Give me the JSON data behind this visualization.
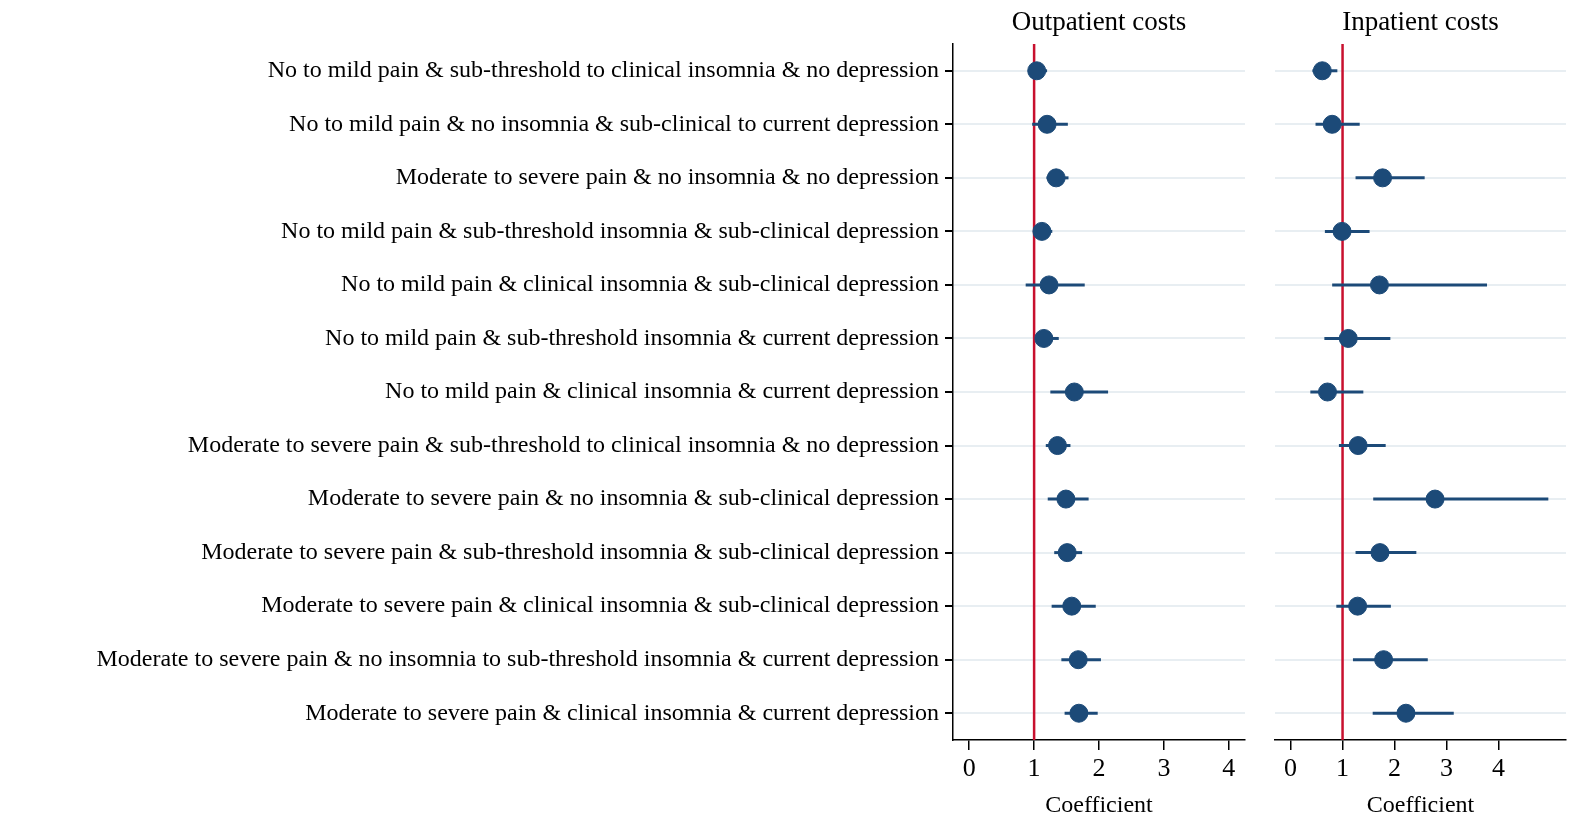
{
  "chart_data": [
    {
      "type": "scatter",
      "orientation": "horizontal",
      "title": "Outpatient costs",
      "xlabel": "Coefficient",
      "categories": [
        "No to mild pain & sub-threshold to clinical insomnia & no depression",
        "No to mild pain & no insomnia & sub-clinical to current depression",
        "Moderate to severe pain & no insomnia & no depression",
        "No to mild pain & sub-threshold insomnia & sub-clinical depression",
        "No to mild pain & clinical insomnia & sub-clinical depression",
        "No to mild pain & sub-threshold insomnia & current depression",
        "No to mild pain & clinical insomnia & current depression",
        "Moderate to severe pain & sub-threshold to clinical insomnia & no depression",
        "Moderate to severe pain & no insomnia & sub-clinical depression",
        "Moderate to severe pain & sub-threshold insomnia & sub-clinical depression",
        "Moderate to severe pain & clinical insomnia & sub-clinical depression",
        "Moderate to severe pain & no insomnia to sub-threshold insomnia & current depression",
        "Moderate to severe pain & clinical insomnia & current depression"
      ],
      "series": [
        {
          "color": "#1c4a78",
          "values": [
            1.04,
            1.2,
            1.34,
            1.12,
            1.23,
            1.15,
            1.62,
            1.36,
            1.49,
            1.51,
            1.58,
            1.68,
            1.69
          ],
          "errors": [
            [
              0.95,
              1.2
            ],
            [
              0.97,
              1.52
            ],
            [
              1.19,
              1.53
            ],
            [
              1.0,
              1.28
            ],
            [
              0.87,
              1.78
            ],
            [
              1.03,
              1.38
            ],
            [
              1.25,
              2.14
            ],
            [
              1.18,
              1.56
            ],
            [
              1.21,
              1.84
            ],
            [
              1.31,
              1.74
            ],
            [
              1.27,
              1.95
            ],
            [
              1.42,
              2.03
            ],
            [
              1.47,
              1.98
            ]
          ]
        }
      ],
      "xlim": [
        -0.25,
        4.25
      ],
      "xticks": [
        0,
        1,
        2,
        3,
        4
      ],
      "marker": "circle",
      "grid": "y",
      "legend": false,
      "ref_lines": [
        {
          "axis": "x",
          "value": 1,
          "color": "#c8102e"
        }
      ]
    },
    {
      "type": "scatter",
      "orientation": "horizontal",
      "title": "Inpatient costs",
      "xlabel": "Coefficient",
      "categories": [
        null,
        null,
        null,
        null,
        null,
        null,
        null,
        null,
        null,
        null,
        null,
        null,
        null
      ],
      "series": [
        {
          "color": "#1c4a78",
          "values": [
            0.61,
            0.8,
            1.77,
            0.99,
            1.71,
            1.11,
            0.71,
            1.3,
            2.78,
            1.72,
            1.29,
            1.79,
            2.22
          ],
          "errors": [
            [
              0.42,
              0.9
            ],
            [
              0.48,
              1.33
            ],
            [
              1.25,
              2.58
            ],
            [
              0.66,
              1.52
            ],
            [
              0.8,
              3.78
            ],
            [
              0.65,
              1.92
            ],
            [
              0.38,
              1.4
            ],
            [
              0.93,
              1.83
            ],
            [
              1.59,
              4.96
            ],
            [
              1.25,
              2.42
            ],
            [
              0.88,
              1.93
            ],
            [
              1.2,
              2.64
            ],
            [
              1.58,
              3.14
            ]
          ]
        }
      ],
      "xlim": [
        -0.3,
        5.3
      ],
      "xticks": [
        0,
        1,
        2,
        3,
        4
      ],
      "marker": "circle",
      "grid": "y",
      "legend": false,
      "tick_labels": "x",
      "ref_lines": [
        {
          "axis": "x",
          "value": 1,
          "color": "#c8102e"
        }
      ]
    }
  ]
}
